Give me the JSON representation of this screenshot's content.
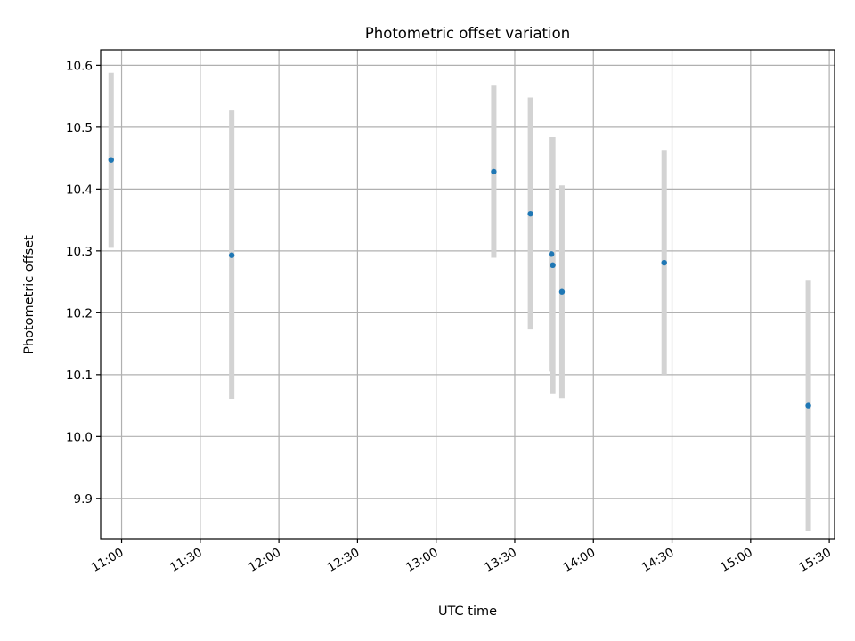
{
  "chart_data": {
    "type": "scatter",
    "title": "Photometric offset variation",
    "xlabel": "UTC time",
    "ylabel": "Photometric offset",
    "grid": true,
    "xlim": [
      "10:52",
      "15:32"
    ],
    "ylim": [
      9.835,
      10.625
    ],
    "x_ticks": [
      "11:00",
      "11:30",
      "12:00",
      "12:30",
      "13:00",
      "13:30",
      "14:00",
      "14:30",
      "15:00",
      "15:30"
    ],
    "y_ticks": [
      9.9,
      10.0,
      10.1,
      10.2,
      10.3,
      10.4,
      10.5,
      10.6
    ],
    "series": [
      {
        "marker_color": "#1f77b4",
        "errorbar_color": "#d3d3d3",
        "points": [
          {
            "x": "10:56",
            "y": 10.447,
            "y_low": 10.305,
            "y_high": 10.588
          },
          {
            "x": "11:42",
            "y": 10.293,
            "y_low": 10.061,
            "y_high": 10.527
          },
          {
            "x": "13:22",
            "y": 10.428,
            "y_low": 10.289,
            "y_high": 10.567
          },
          {
            "x": "13:36",
            "y": 10.36,
            "y_low": 10.173,
            "y_high": 10.548
          },
          {
            "x": "13:44",
            "y": 10.295,
            "y_low": 10.105,
            "y_high": 10.484
          },
          {
            "x": "13:44.5",
            "y": 10.277,
            "y_low": 10.07,
            "y_high": 10.484
          },
          {
            "x": "13:48",
            "y": 10.234,
            "y_low": 10.062,
            "y_high": 10.406
          },
          {
            "x": "14:27",
            "y": 10.281,
            "y_low": 10.1,
            "y_high": 10.462
          },
          {
            "x": "15:22",
            "y": 10.05,
            "y_low": 9.847,
            "y_high": 10.252
          }
        ]
      }
    ]
  }
}
